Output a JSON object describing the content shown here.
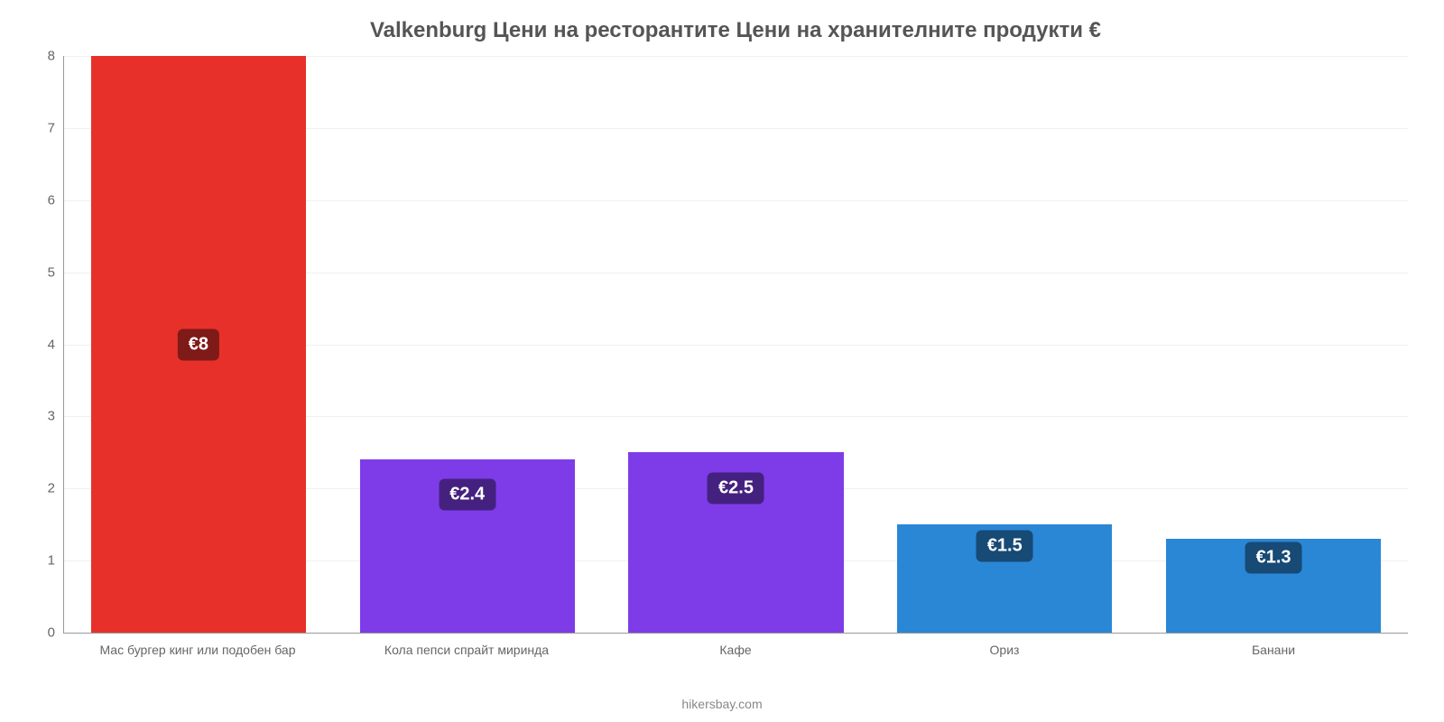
{
  "chart": {
    "type": "bar",
    "title": "Valkenburg Цени на ресторантите Цени на хранителните продукти €",
    "title_fontsize": 24,
    "title_color": "#555555",
    "attribution": "hikersbay.com",
    "attribution_fontsize": 14,
    "attribution_color": "#888888",
    "background_color": "#ffffff",
    "plot_background_color": "#ffffff",
    "grid_color": "#f0f0f0",
    "axis_line_color": "#999999",
    "ylim": [
      0,
      8
    ],
    "yticks": [
      0,
      1,
      2,
      3,
      4,
      5,
      6,
      7,
      8
    ],
    "ytick_fontsize": 15,
    "ytick_color": "#666666",
    "xlabel_fontsize": 14,
    "xlabel_color": "#666666",
    "bar_width_pct": 80,
    "badge_fontsize": 20,
    "categories": [
      "Мас бургер кинг или подобен бар",
      "Кола пепси спрайт миринда",
      "Кафе",
      "Ориз",
      "Банани"
    ],
    "values": [
      8,
      2.4,
      2.5,
      1.5,
      1.3
    ],
    "value_labels": [
      "€8",
      "€2.4",
      "€2.5",
      "€1.5",
      "€1.3"
    ],
    "bar_colors": [
      "#e7302a",
      "#7d3ce8",
      "#7d3ce8",
      "#2a87d6",
      "#2a87d6"
    ],
    "badge_colors": [
      "#7e1a17",
      "#45217f",
      "#45217f",
      "#174a75",
      "#174a75"
    ]
  }
}
